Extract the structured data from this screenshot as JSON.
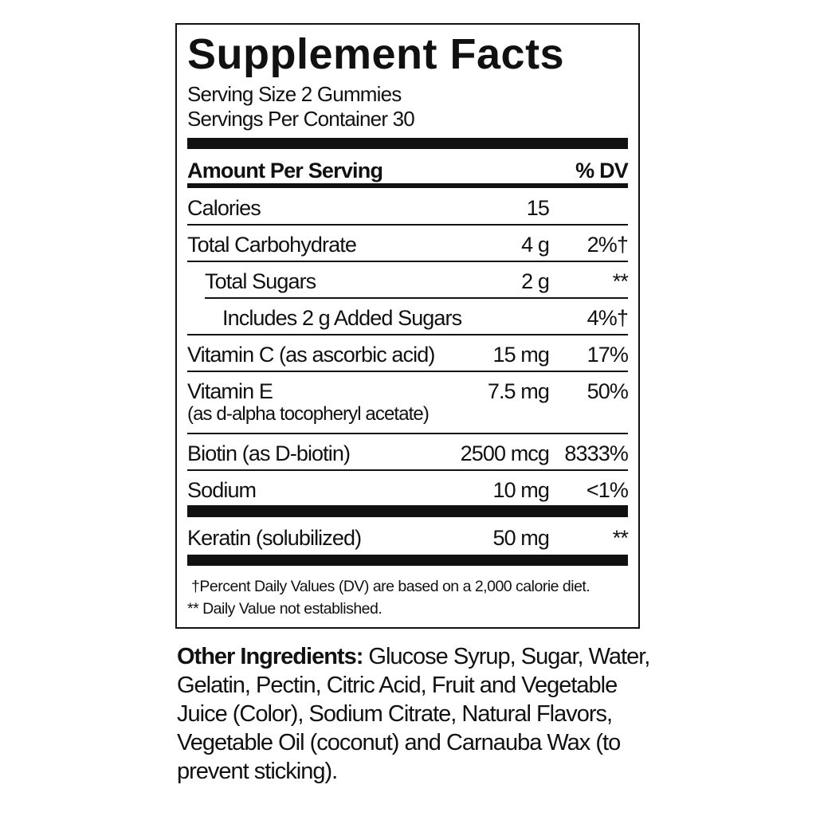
{
  "title": "Supplement Facts",
  "serving_size": "Serving Size 2 Gummies",
  "servings_per_container": "Servings Per Container 30",
  "header": {
    "amount": "Amount Per Serving",
    "dv": "% DV"
  },
  "rows": [
    {
      "name": "Calories",
      "amount": "15",
      "dv": ""
    },
    {
      "name": "Total Carbohydrate",
      "amount": "4 g",
      "dv": "2%†"
    },
    {
      "name": "Total Sugars",
      "amount": "2 g",
      "dv": "**"
    },
    {
      "name": "Includes 2 g Added Sugars",
      "amount": "",
      "dv": "4%†"
    },
    {
      "name": "Vitamin C (as ascorbic acid)",
      "amount": "15 mg",
      "dv": "17%"
    },
    {
      "name": "Vitamin E",
      "sub": "(as d-alpha tocopheryl acetate)",
      "amount": "7.5 mg",
      "dv": "50%"
    },
    {
      "name": "Biotin (as D-biotin)",
      "amount": "2500 mcg",
      "dv": "8333%"
    },
    {
      "name": "Sodium",
      "amount": "10 mg",
      "dv": "<1%"
    },
    {
      "name": "Keratin (solubilized)",
      "amount": "50 mg",
      "dv": "**"
    }
  ],
  "footnotes": [
    "†Percent Daily Values (DV) are based on a 2,000 calorie diet.",
    "** Daily Value not established."
  ],
  "other_ingredients": {
    "label": "Other Ingredients:",
    "text": " Glucose Syrup, Sugar, Water, Gelatin, Pectin, Citric Acid, Fruit and Vegetable Juice (Color), Sodium Citrate, Natural Flavors, Vegetable Oil (coconut) and Carnauba Wax (to prevent sticking)."
  }
}
